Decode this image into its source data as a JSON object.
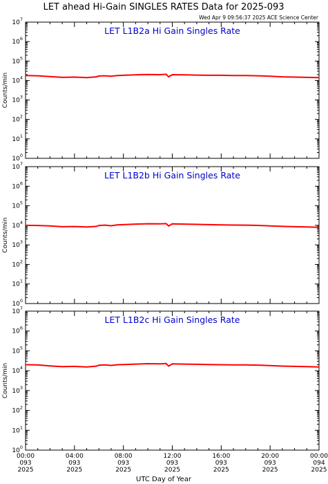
{
  "header": {
    "title": "LET ahead Hi-Gain SINGLES RATES Data for 2025-093",
    "timestamp": "Wed Apr  9 09:56:37 2025 ACE Science Center"
  },
  "colors": {
    "line": "#ff0000",
    "panel_title": "#0000cc",
    "axis": "#000000"
  },
  "chart_data": [
    {
      "type": "line",
      "title": "LET L1B2a Hi Gain Singles Rate",
      "ylabel": "Counts/min",
      "xlabel": "UTC Day of Year",
      "yscale": "log",
      "ylim": [
        1,
        10000000
      ],
      "xlim": [
        0,
        24
      ],
      "x_ticks": [
        {
          "l1": "00:00",
          "l2": "093",
          "l3": "2025"
        },
        {
          "l1": "04:00",
          "l2": "093",
          "l3": "2025"
        },
        {
          "l1": "08:00",
          "l2": "093",
          "l3": "2025"
        },
        {
          "l1": "12:00",
          "l2": "093",
          "l3": "2025"
        },
        {
          "l1": "16:00",
          "l2": "093",
          "l3": "2025"
        },
        {
          "l1": "20:00",
          "l2": "093",
          "l3": "2025"
        },
        {
          "l1": "00:00",
          "l2": "094",
          "l3": "2025"
        }
      ],
      "series": [
        {
          "x": [
            0,
            1,
            2,
            3,
            4,
            5,
            5.8,
            6,
            6.5,
            7,
            7.5,
            8,
            9,
            10,
            11,
            11.5,
            11.7,
            12,
            13,
            14,
            15,
            16,
            17,
            18,
            19,
            20,
            21,
            22,
            23,
            24
          ],
          "y": [
            18000,
            17500,
            16000,
            14500,
            15000,
            14000,
            15500,
            17000,
            17500,
            16500,
            18000,
            18500,
            19500,
            20500,
            20000,
            21000,
            15500,
            20000,
            19500,
            19000,
            18500,
            18500,
            18000,
            18000,
            17500,
            16500,
            15500,
            15000,
            14500,
            14000
          ]
        }
      ]
    },
    {
      "type": "line",
      "title": "LET L1B2b Hi Gain Singles Rate",
      "ylabel": "Counts/min",
      "xlabel": "UTC Day of Year",
      "yscale": "log",
      "ylim": [
        1,
        10000000
      ],
      "xlim": [
        0,
        24
      ],
      "x_ticks": [
        {
          "l1": "00:00",
          "l2": "093",
          "l3": "2025"
        },
        {
          "l1": "04:00",
          "l2": "093",
          "l3": "2025"
        },
        {
          "l1": "08:00",
          "l2": "093",
          "l3": "2025"
        },
        {
          "l1": "12:00",
          "l2": "093",
          "l3": "2025"
        },
        {
          "l1": "16:00",
          "l2": "093",
          "l3": "2025"
        },
        {
          "l1": "20:00",
          "l2": "093",
          "l3": "2025"
        },
        {
          "l1": "00:00",
          "l2": "094",
          "l3": "2025"
        }
      ],
      "series": [
        {
          "x": [
            0,
            1,
            2,
            3,
            4,
            5,
            5.8,
            6,
            6.5,
            7,
            7.5,
            8,
            9,
            10,
            11,
            11.5,
            11.7,
            12,
            13,
            14,
            15,
            16,
            17,
            18,
            19,
            20,
            21,
            22,
            23,
            24
          ],
          "y": [
            10000,
            9800,
            9300,
            8500,
            8700,
            8200,
            8800,
            9800,
            10200,
            9500,
            10500,
            10800,
            11500,
            12000,
            11800,
            12200,
            9200,
            11800,
            11500,
            11200,
            10800,
            10500,
            10300,
            10200,
            9900,
            9300,
            8800,
            8500,
            8200,
            7900
          ]
        }
      ]
    },
    {
      "type": "line",
      "title": "LET L1B2c Hi Gain Singles Rate",
      "ylabel": "Counts/min",
      "xlabel": "UTC Day of Year",
      "yscale": "log",
      "ylim": [
        1,
        10000000
      ],
      "xlim": [
        0,
        24
      ],
      "x_ticks": [
        {
          "l1": "00:00",
          "l2": "093",
          "l3": "2025"
        },
        {
          "l1": "04:00",
          "l2": "093",
          "l3": "2025"
        },
        {
          "l1": "08:00",
          "l2": "093",
          "l3": "2025"
        },
        {
          "l1": "12:00",
          "l2": "093",
          "l3": "2025"
        },
        {
          "l1": "16:00",
          "l2": "093",
          "l3": "2025"
        },
        {
          "l1": "20:00",
          "l2": "093",
          "l3": "2025"
        },
        {
          "l1": "00:00",
          "l2": "094",
          "l3": "2025"
        }
      ],
      "series": [
        {
          "x": [
            0,
            1,
            2,
            3,
            4,
            5,
            5.8,
            6,
            6.5,
            7,
            7.5,
            8,
            9,
            10,
            11,
            11.5,
            11.7,
            12,
            13,
            14,
            15,
            16,
            17,
            18,
            19,
            20,
            21,
            22,
            23,
            24
          ],
          "y": [
            20000,
            19500,
            17500,
            16000,
            16500,
            15500,
            17000,
            19000,
            19500,
            18500,
            20000,
            20500,
            21500,
            22500,
            22000,
            23000,
            17000,
            22000,
            21500,
            21000,
            20500,
            20000,
            19500,
            19500,
            19000,
            18000,
            17000,
            16500,
            16000,
            15500
          ]
        }
      ]
    }
  ]
}
